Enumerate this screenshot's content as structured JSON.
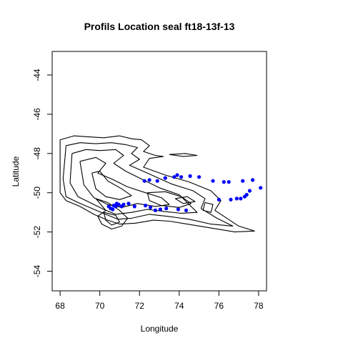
{
  "chart_data": {
    "type": "scatter",
    "title": "Profils Location seal ft18-13f-13",
    "xlabel": "Longitude",
    "ylabel": "Latitude",
    "xlim": [
      67.6,
      78.4
    ],
    "ylim": [
      -55.0,
      -42.8
    ],
    "xticks": [
      68,
      70,
      72,
      74,
      76,
      78
    ],
    "yticks": [
      -54,
      -52,
      -50,
      -48,
      -46,
      -44
    ],
    "grid": false,
    "point_color": "#0000ff",
    "contour_color": "#000000",
    "background": "Kerguelen Plateau bathymetry contours",
    "points": [
      {
        "x": 70.45,
        "y": -50.7
      },
      {
        "x": 70.55,
        "y": -50.8
      },
      {
        "x": 70.65,
        "y": -50.85
      },
      {
        "x": 70.7,
        "y": -50.65
      },
      {
        "x": 70.8,
        "y": -50.7
      },
      {
        "x": 70.85,
        "y": -50.55
      },
      {
        "x": 70.95,
        "y": -50.6
      },
      {
        "x": 71.1,
        "y": -50.7
      },
      {
        "x": 71.2,
        "y": -50.6
      },
      {
        "x": 71.45,
        "y": -50.55
      },
      {
        "x": 71.75,
        "y": -50.7
      },
      {
        "x": 72.25,
        "y": -49.4
      },
      {
        "x": 72.3,
        "y": -50.65
      },
      {
        "x": 72.5,
        "y": -49.35
      },
      {
        "x": 72.55,
        "y": -50.75
      },
      {
        "x": 72.8,
        "y": -50.9
      },
      {
        "x": 72.9,
        "y": -49.4
      },
      {
        "x": 73.05,
        "y": -50.85
      },
      {
        "x": 73.3,
        "y": -49.25
      },
      {
        "x": 73.35,
        "y": -50.8
      },
      {
        "x": 73.75,
        "y": -49.2
      },
      {
        "x": 73.9,
        "y": -49.1
      },
      {
        "x": 73.95,
        "y": -50.85
      },
      {
        "x": 74.1,
        "y": -49.2
      },
      {
        "x": 74.35,
        "y": -50.9
      },
      {
        "x": 74.55,
        "y": -49.15
      },
      {
        "x": 75.0,
        "y": -49.2
      },
      {
        "x": 75.7,
        "y": -49.4
      },
      {
        "x": 76.0,
        "y": -50.35
      },
      {
        "x": 76.25,
        "y": -49.45
      },
      {
        "x": 76.5,
        "y": -49.45
      },
      {
        "x": 76.6,
        "y": -50.35
      },
      {
        "x": 76.9,
        "y": -50.3
      },
      {
        "x": 77.1,
        "y": -50.3
      },
      {
        "x": 77.2,
        "y": -49.4
      },
      {
        "x": 77.3,
        "y": -50.2
      },
      {
        "x": 77.4,
        "y": -50.1
      },
      {
        "x": 77.55,
        "y": -49.9
      },
      {
        "x": 77.7,
        "y": -49.35
      },
      {
        "x": 78.1,
        "y": -49.75
      }
    ],
    "contours": [
      [
        [
          68.0,
          -47.3
        ],
        [
          68.7,
          -47.1
        ],
        [
          69.4,
          -47.15
        ],
        [
          70.2,
          -47.2
        ],
        [
          71.0,
          -47.1
        ],
        [
          71.6,
          -47.25
        ],
        [
          72.1,
          -47.3
        ],
        [
          72.5,
          -47.6
        ],
        [
          72.2,
          -47.9
        ],
        [
          72.8,
          -48.1
        ],
        [
          73.2,
          -48.15
        ],
        [
          72.5,
          -48.25
        ],
        [
          72.2,
          -48.7
        ],
        [
          73.3,
          -49.1
        ],
        [
          74.5,
          -49.45
        ],
        [
          75.6,
          -49.9
        ],
        [
          76.1,
          -50.4
        ],
        [
          75.8,
          -50.9
        ],
        [
          76.4,
          -51.3
        ],
        [
          77.0,
          -51.7
        ],
        [
          77.8,
          -51.95
        ],
        [
          76.8,
          -52.0
        ],
        [
          75.6,
          -51.8
        ],
        [
          74.4,
          -51.6
        ],
        [
          73.5,
          -51.45
        ],
        [
          72.7,
          -51.4
        ],
        [
          71.8,
          -51.55
        ],
        [
          71.0,
          -51.6
        ],
        [
          70.4,
          -51.4
        ],
        [
          69.7,
          -51.1
        ],
        [
          69.0,
          -50.7
        ],
        [
          68.3,
          -50.4
        ],
        [
          68.0,
          -50.0
        ],
        [
          68.0,
          -47.3
        ]
      ],
      [
        [
          68.3,
          -47.6
        ],
        [
          69.0,
          -47.45
        ],
        [
          69.8,
          -47.5
        ],
        [
          70.6,
          -47.45
        ],
        [
          71.3,
          -47.55
        ],
        [
          71.9,
          -47.7
        ],
        [
          71.6,
          -48.0
        ],
        [
          72.0,
          -48.3
        ],
        [
          71.5,
          -48.6
        ],
        [
          72.4,
          -49.0
        ],
        [
          73.6,
          -49.55
        ],
        [
          74.7,
          -49.9
        ],
        [
          75.3,
          -50.3
        ],
        [
          75.1,
          -50.8
        ],
        [
          75.9,
          -51.3
        ],
        [
          76.7,
          -51.7
        ],
        [
          75.6,
          -51.6
        ],
        [
          74.5,
          -51.35
        ],
        [
          73.4,
          -51.2
        ],
        [
          72.5,
          -51.1
        ],
        [
          71.6,
          -51.3
        ],
        [
          70.9,
          -51.35
        ],
        [
          70.3,
          -51.1
        ],
        [
          69.6,
          -50.8
        ],
        [
          68.9,
          -50.5
        ],
        [
          68.3,
          -50.2
        ],
        [
          68.15,
          -49.3
        ],
        [
          68.3,
          -47.6
        ]
      ],
      [
        [
          68.6,
          -48.0
        ],
        [
          69.3,
          -47.8
        ],
        [
          70.0,
          -47.85
        ],
        [
          70.8,
          -47.8
        ],
        [
          71.2,
          -48.1
        ],
        [
          70.7,
          -48.5
        ],
        [
          71.3,
          -48.9
        ],
        [
          72.1,
          -49.3
        ],
        [
          73.0,
          -49.75
        ],
        [
          74.0,
          -50.1
        ],
        [
          74.4,
          -50.5
        ],
        [
          74.9,
          -51.0
        ],
        [
          74.1,
          -51.05
        ],
        [
          73.2,
          -50.95
        ],
        [
          72.4,
          -50.85
        ],
        [
          71.6,
          -51.0
        ],
        [
          70.8,
          -51.1
        ],
        [
          70.2,
          -50.85
        ],
        [
          69.5,
          -50.5
        ],
        [
          68.9,
          -50.2
        ],
        [
          68.5,
          -49.5
        ],
        [
          68.6,
          -48.0
        ]
      ],
      [
        [
          69.0,
          -48.4
        ],
        [
          69.8,
          -48.2
        ],
        [
          70.3,
          -48.5
        ],
        [
          69.9,
          -49.0
        ],
        [
          70.6,
          -49.3
        ],
        [
          71.4,
          -49.7
        ],
        [
          72.3,
          -50.0
        ],
        [
          73.1,
          -50.25
        ],
        [
          73.5,
          -50.6
        ],
        [
          72.8,
          -50.7
        ],
        [
          71.9,
          -50.55
        ],
        [
          71.1,
          -50.75
        ],
        [
          70.4,
          -50.6
        ],
        [
          69.7,
          -50.25
        ],
        [
          69.2,
          -49.6
        ],
        [
          69.0,
          -48.4
        ]
      ],
      [
        [
          69.6,
          -49.0
        ],
        [
          70.0,
          -48.9
        ],
        [
          70.4,
          -49.4
        ],
        [
          71.1,
          -49.8
        ],
        [
          71.6,
          -50.15
        ],
        [
          71.0,
          -50.35
        ],
        [
          70.3,
          -50.2
        ],
        [
          69.8,
          -49.8
        ],
        [
          69.6,
          -49.0
        ]
      ],
      [
        [
          69.8,
          -50.3
        ],
        [
          70.4,
          -50.5
        ],
        [
          71.0,
          -50.9
        ],
        [
          71.4,
          -51.3
        ],
        [
          71.1,
          -51.7
        ],
        [
          70.6,
          -51.85
        ],
        [
          70.1,
          -51.6
        ],
        [
          69.9,
          -51.2
        ],
        [
          70.3,
          -50.9
        ],
        [
          69.8,
          -50.3
        ]
      ],
      [
        [
          70.2,
          -51.0
        ],
        [
          70.8,
          -51.15
        ],
        [
          71.0,
          -51.5
        ],
        [
          70.6,
          -51.65
        ],
        [
          70.3,
          -51.4
        ],
        [
          70.2,
          -51.0
        ]
      ],
      [
        [
          72.4,
          -50.0
        ],
        [
          73.3,
          -49.95
        ],
        [
          74.1,
          -50.2
        ],
        [
          74.6,
          -50.55
        ],
        [
          74.0,
          -50.75
        ],
        [
          73.1,
          -50.65
        ],
        [
          72.5,
          -50.4
        ],
        [
          72.4,
          -50.0
        ]
      ],
      [
        [
          73.5,
          -48.05
        ],
        [
          74.3,
          -48.0
        ],
        [
          74.9,
          -48.1
        ],
        [
          74.2,
          -48.15
        ],
        [
          73.5,
          -48.05
        ]
      ],
      [
        [
          73.8,
          -50.3
        ],
        [
          74.4,
          -50.2
        ],
        [
          74.8,
          -50.45
        ],
        [
          74.2,
          -50.55
        ],
        [
          73.8,
          -50.3
        ]
      ],
      [
        [
          75.3,
          -50.5
        ],
        [
          75.7,
          -50.6
        ],
        [
          75.6,
          -51.0
        ],
        [
          75.2,
          -50.9
        ],
        [
          75.3,
          -50.5
        ]
      ]
    ]
  }
}
